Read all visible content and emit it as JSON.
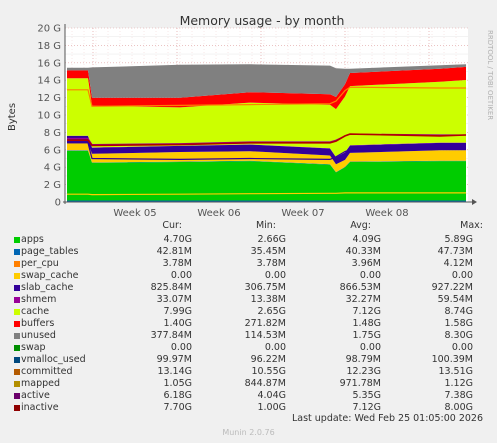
{
  "chart_data": {
    "type": "area",
    "title": "Memory usage - by month",
    "ylabel": "Bytes",
    "ylim": [
      0,
      20
    ],
    "y_unit": "G",
    "y_ticks": [
      "0",
      "2 G",
      "4 G",
      "6 G",
      "8 G",
      "10 G",
      "12 G",
      "14 G",
      "16 G",
      "18 G",
      "20 G"
    ],
    "x_ticks": [
      "Week 05",
      "Week 06",
      "Week 07",
      "Week 08"
    ],
    "grid": true,
    "legend_placement": "bottom",
    "side_label": "RRDTOOL / TOBI OETIKER",
    "stacked_layers": [
      {
        "name": "apps",
        "color": "#00cc00"
      },
      {
        "name": "page_tables",
        "color": "#0066b3"
      },
      {
        "name": "per_cpu",
        "color": "#ff8000"
      },
      {
        "name": "swap_cache",
        "color": "#ffcc00"
      },
      {
        "name": "slab_cache",
        "color": "#330099"
      },
      {
        "name": "shmem",
        "color": "#990099"
      },
      {
        "name": "cache",
        "color": "#ccff00"
      },
      {
        "name": "buffers",
        "color": "#ff0000"
      },
      {
        "name": "unused",
        "color": "#808080"
      }
    ],
    "series": [
      {
        "name": "apps",
        "color": "#00cc00",
        "cur": "4.70G",
        "min": "2.66G",
        "avg": "4.09G",
        "max": "5.89G"
      },
      {
        "name": "page_tables",
        "color": "#0066b3",
        "cur": "42.81M",
        "min": "35.45M",
        "avg": "40.33M",
        "max": "47.73M"
      },
      {
        "name": "per_cpu",
        "color": "#ff8000",
        "cur": "3.78M",
        "min": "3.78M",
        "avg": "3.96M",
        "max": "4.12M"
      },
      {
        "name": "swap_cache",
        "color": "#ffcc00",
        "cur": "0.00",
        "min": "0.00",
        "avg": "0.00",
        "max": "0.00"
      },
      {
        "name": "slab_cache",
        "color": "#330099",
        "cur": "825.84M",
        "min": "306.75M",
        "avg": "866.53M",
        "max": "927.22M"
      },
      {
        "name": "shmem",
        "color": "#990099",
        "cur": "33.07M",
        "min": "13.38M",
        "avg": "32.27M",
        "max": "59.54M"
      },
      {
        "name": "cache",
        "color": "#ccff00",
        "cur": "7.99G",
        "min": "2.65G",
        "avg": "7.12G",
        "max": "8.74G"
      },
      {
        "name": "buffers",
        "color": "#ff0000",
        "cur": "1.40G",
        "min": "271.82M",
        "avg": "1.48G",
        "max": "1.58G"
      },
      {
        "name": "unused",
        "color": "#808080",
        "cur": "377.84M",
        "min": "114.53M",
        "avg": "1.75G",
        "max": "8.30G"
      },
      {
        "name": "swap",
        "color": "#00cc00",
        "cur": "0.00",
        "min": "0.00",
        "avg": "0.00",
        "max": "0.00"
      },
      {
        "name": "vmalloc_used",
        "color": "#0066b3",
        "cur": "99.97M",
        "min": "96.22M",
        "avg": "98.79M",
        "max": "100.39M"
      },
      {
        "name": "committed",
        "color": "#ff8000",
        "cur": "13.14G",
        "min": "10.55G",
        "avg": "12.23G",
        "max": "13.51G"
      },
      {
        "name": "mapped",
        "color": "#ffcc00",
        "cur": "1.05G",
        "min": "844.87M",
        "avg": "971.78M",
        "max": "1.12G"
      },
      {
        "name": "active",
        "color": "#330099",
        "cur": "6.18G",
        "min": "4.04G",
        "avg": "5.35G",
        "max": "7.38G"
      },
      {
        "name": "inactive",
        "color": "#990099",
        "cur": "7.70G",
        "min": "1.00G",
        "avg": "7.12G",
        "max": "8.00G"
      }
    ]
  },
  "legend_headers": {
    "cur": "Cur:",
    "min": "Min:",
    "avg": "Avg:",
    "max": "Max:"
  },
  "legend_colors": [
    "#00cc00",
    "#0066b3",
    "#ff8000",
    "#ffcc00",
    "#330099",
    "#990099",
    "#ccff00",
    "#ff0000",
    "#808080",
    "#008f00",
    "#00487d",
    "#b35a00",
    "#b38f00",
    "#6b006b",
    "#8f0000"
  ],
  "last_update": "Last update: Wed Feb 25 01:05:00 2026",
  "munin_version": "Munin 2.0.76"
}
